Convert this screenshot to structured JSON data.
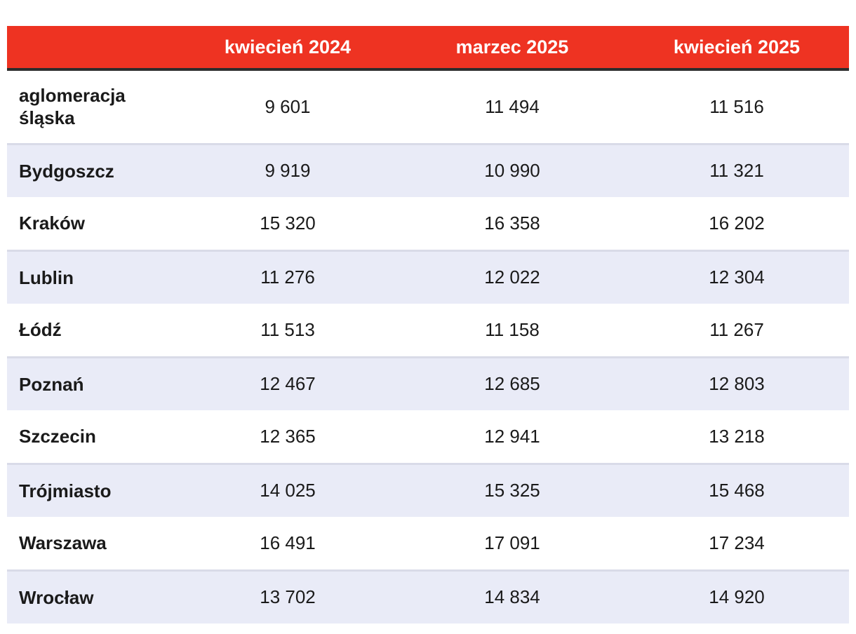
{
  "table": {
    "header": {
      "city_column_label": "",
      "columns": [
        "kwiecień 2024",
        "marzec 2025",
        "kwiecień 2025"
      ]
    },
    "rows": [
      {
        "label": "aglomeracja śląska",
        "values": [
          "9 601",
          "11 494",
          "11 516"
        ]
      },
      {
        "label": "Bydgoszcz",
        "values": [
          "9 919",
          "10 990",
          "11 321"
        ]
      },
      {
        "label": "Kraków",
        "values": [
          "15 320",
          "16 358",
          "16 202"
        ]
      },
      {
        "label": "Lublin",
        "values": [
          "11 276",
          "12 022",
          "12 304"
        ]
      },
      {
        "label": "Łódź",
        "values": [
          "11 513",
          "11 158",
          "11 267"
        ]
      },
      {
        "label": "Poznań",
        "values": [
          "12 467",
          "12 685",
          "12 803"
        ]
      },
      {
        "label": "Szczecin",
        "values": [
          "12 365",
          "12 941",
          "13 218"
        ]
      },
      {
        "label": "Trójmiasto",
        "values": [
          "14 025",
          "15 325",
          "15 468"
        ]
      },
      {
        "label": "Warszawa",
        "values": [
          "16 491",
          "17 091",
          "17 234"
        ]
      },
      {
        "label": "Wrocław",
        "values": [
          "13 702",
          "14 834",
          "14 920"
        ]
      }
    ],
    "colors": {
      "header_bg": "#ee3322",
      "header_text": "#ffffff",
      "header_underline": "#2d2d2d",
      "alt_row_bg": "#e9ebf7",
      "alt_row_border": "#d9dbe8",
      "body_text": "#1a1a1a"
    }
  },
  "chart_data": {
    "type": "table",
    "title": "",
    "categories": [
      "aglomeracja śląska",
      "Bydgoszcz",
      "Kraków",
      "Lublin",
      "Łódź",
      "Poznań",
      "Szczecin",
      "Trójmiasto",
      "Warszawa",
      "Wrocław"
    ],
    "series": [
      {
        "name": "kwiecień 2024",
        "values": [
          9601,
          9919,
          15320,
          11276,
          11513,
          12467,
          12365,
          14025,
          16491,
          13702
        ]
      },
      {
        "name": "marzec 2025",
        "values": [
          11494,
          10990,
          16358,
          12022,
          11158,
          12685,
          12941,
          15325,
          17091,
          14834
        ]
      },
      {
        "name": "kwiecień 2025",
        "values": [
          11516,
          11321,
          16202,
          12304,
          11267,
          12803,
          13218,
          15468,
          17234,
          14920
        ]
      }
    ]
  }
}
